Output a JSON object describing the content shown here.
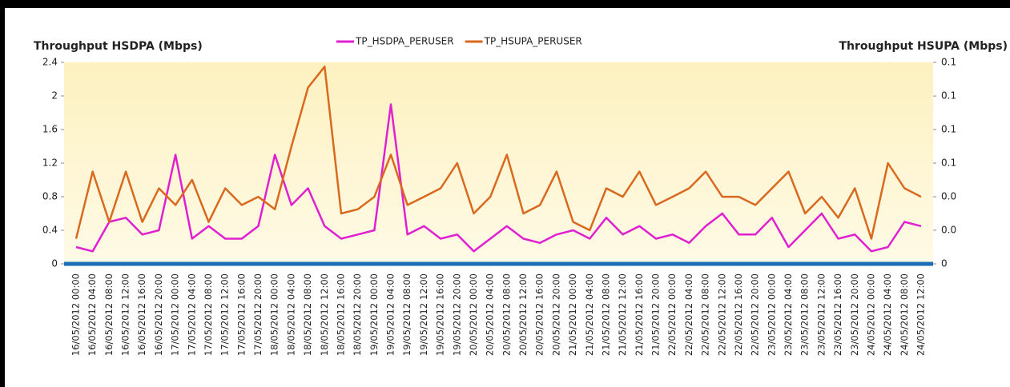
{
  "chart_data": {
    "type": "line",
    "ylabel": "Throughput HSDPA (Mbps)",
    "y2label": "Throughput HSUPA (Mbps)",
    "categories": [
      "16/05/2012 00:00",
      "16/05/2012 04:00",
      "16/05/2012 08:00",
      "16/05/2012 12:00",
      "16/05/2012 16:00",
      "16/05/2012 20:00",
      "17/05/2012 00:00",
      "17/05/2012 04:00",
      "17/05/2012 08:00",
      "17/05/2012 12:00",
      "17/05/2012 16:00",
      "17/05/2012 20:00",
      "18/05/2012 00:00",
      "18/05/2012 04:00",
      "18/05/2012 08:00",
      "18/05/2012 12:00",
      "18/05/2012 16:00",
      "18/05/2012 20:00",
      "19/05/2012 00:00",
      "19/05/2012 04:00",
      "19/05/2012 08:00",
      "19/05/2012 12:00",
      "19/05/2012 16:00",
      "19/05/2012 20:00",
      "20/05/2012 00:00",
      "20/05/2012 04:00",
      "20/05/2012 08:00",
      "20/05/2012 12:00",
      "20/05/2012 16:00",
      "20/05/2012 20:00",
      "21/05/2012 00:00",
      "21/05/2012 04:00",
      "21/05/2012 08:00",
      "21/05/2012 12:00",
      "21/05/2012 16:00",
      "21/05/2012 20:00",
      "22/05/2012 00:00",
      "22/05/2012 04:00",
      "22/05/2012 08:00",
      "22/05/2012 12:00",
      "22/05/2012 16:00",
      "22/05/2012 20:00",
      "23/05/2012 00:00",
      "23/05/2012 04:00",
      "23/05/2012 08:00",
      "23/05/2012 12:00",
      "23/05/2012 16:00",
      "23/05/2012 20:00",
      "24/05/2012 00:00",
      "24/05/2012 04:00",
      "24/05/2012 08:00",
      "24/05/2012 12:00"
    ],
    "series": [
      {
        "name": "TP_HSDPA_PERUSER",
        "color": "#e020d0",
        "values": [
          0.2,
          0.15,
          0.5,
          0.55,
          0.35,
          0.4,
          1.3,
          0.3,
          0.45,
          0.3,
          0.3,
          0.45,
          1.3,
          0.7,
          0.9,
          0.45,
          0.3,
          0.35,
          0.4,
          1.9,
          0.35,
          0.45,
          0.3,
          0.35,
          0.15,
          0.3,
          0.45,
          0.3,
          0.25,
          0.35,
          0.4,
          0.3,
          0.55,
          0.35,
          0.45,
          0.3,
          0.35,
          0.25,
          0.45,
          0.6,
          0.35,
          0.35,
          0.55,
          0.2,
          0.4,
          0.6,
          0.3,
          0.35,
          0.15,
          0.2,
          0.5,
          0.45
        ]
      },
      {
        "name": "TP_HSUPA_PERUSER",
        "color": "#d9691e",
        "axis": "y2",
        "values": [
          0.0125,
          0.0458,
          0.0208,
          0.0458,
          0.0208,
          0.0375,
          0.0292,
          0.0417,
          0.0208,
          0.0375,
          0.0292,
          0.0333,
          0.0271,
          0.0583,
          0.0875,
          0.0979,
          0.025,
          0.0271,
          0.0333,
          0.0542,
          0.0292,
          0.0333,
          0.0375,
          0.05,
          0.025,
          0.0333,
          0.0542,
          0.025,
          0.0292,
          0.0458,
          0.0208,
          0.0167,
          0.0375,
          0.0333,
          0.0458,
          0.0292,
          0.0333,
          0.0375,
          0.0458,
          0.0333,
          0.0333,
          0.0292,
          0.0375,
          0.0458,
          0.025,
          0.0333,
          0.0229,
          0.0375,
          0.0125,
          0.05,
          0.0375,
          0.0333
        ]
      }
    ],
    "ylim": [
      0,
      2.4
    ],
    "yticks": [
      0,
      0.4,
      0.8,
      1.2,
      1.6,
      2,
      2.4
    ],
    "y2lim": [
      0,
      0.1
    ],
    "y2ticks": [
      0,
      {
        "value": 0.0167,
        "label": "0.0"
      },
      {
        "value": 0.0333,
        "label": "0.0"
      },
      {
        "value": 0.05,
        "label": "0.1"
      },
      {
        "value": 0.0667,
        "label": "0.1"
      },
      {
        "value": 0.0833,
        "label": "0.1"
      },
      0.1
    ],
    "grid": false
  }
}
